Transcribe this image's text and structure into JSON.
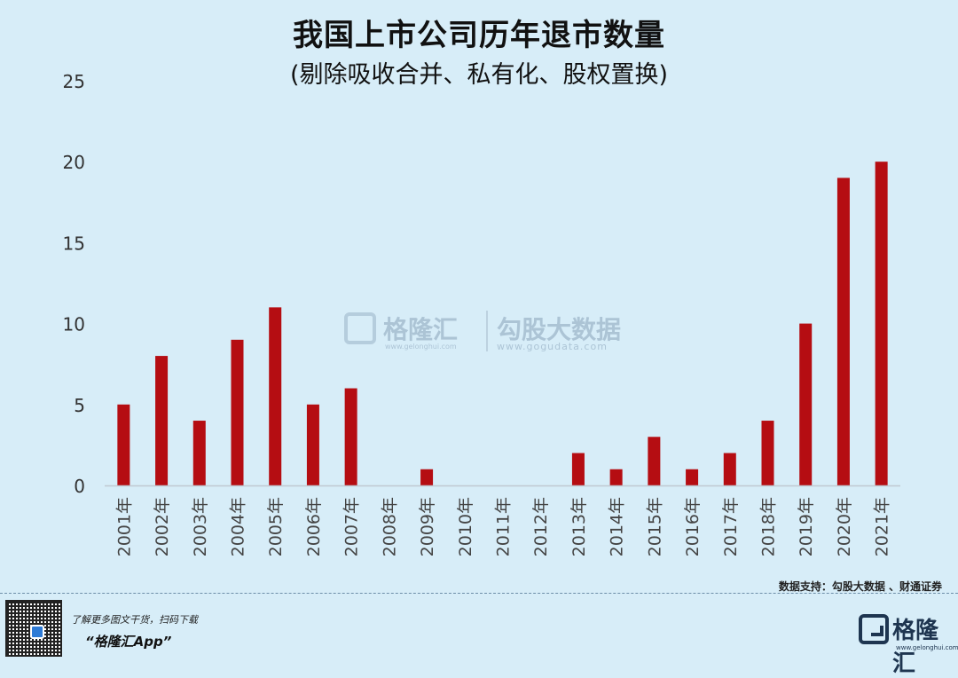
{
  "title": "我国上市公司历年退市数量",
  "subtitle": "(剔除吸收合并、私有化、股权置换)",
  "chart_data": {
    "type": "bar",
    "categories": [
      "2001年",
      "2002年",
      "2003年",
      "2004年",
      "2005年",
      "2006年",
      "2007年",
      "2008年",
      "2009年",
      "2010年",
      "2011年",
      "2012年",
      "2013年",
      "2014年",
      "2015年",
      "2016年",
      "2017年",
      "2018年",
      "2019年",
      "2020年",
      "2021年"
    ],
    "values": [
      5,
      8,
      4,
      9,
      11,
      5,
      6,
      0,
      1,
      0,
      0,
      0,
      2,
      1,
      3,
      1,
      2,
      4,
      10,
      19,
      20
    ],
    "ylim": [
      0,
      25
    ],
    "yticks": [
      0,
      5,
      10,
      15,
      20,
      25
    ],
    "bar_color": "#b50d12",
    "grid": false
  },
  "watermark": {
    "name1": "格隆汇",
    "url1": "www.gelonghui.com",
    "name2": "勾股大数据",
    "url2": "www.gogudata.com"
  },
  "source": "数据支持：勾股大数据 、财通证券",
  "footer": {
    "promo_line": "了解更多图文干货，扫码下载",
    "app_name": "“格隆汇App”",
    "brand": "格隆汇",
    "brand_url": "www.gelonghui.com"
  }
}
